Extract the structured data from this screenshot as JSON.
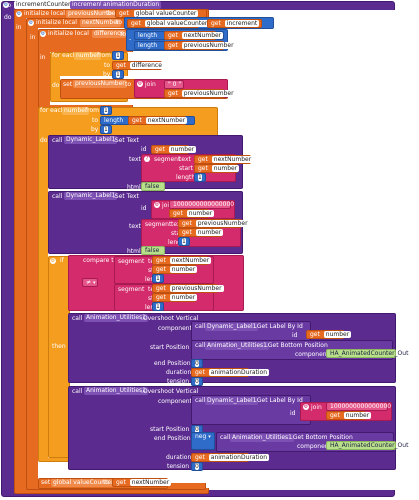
{
  "header": {
    "to_label": "to",
    "procedure_name": "incrementCounter",
    "param1": "increment",
    "param2": "animationDuration",
    "do_label": "do"
  },
  "init1": {
    "label": "initialize local",
    "var": "previousNumber",
    "to_label": "to",
    "get_label": "get",
    "value": "global valueCounter"
  },
  "init2": {
    "label": "initialize local",
    "var": "nextNumber",
    "to_label": "to",
    "plus": "+",
    "get1": "global valueCounter",
    "get2": "increment",
    "get_label": "get"
  },
  "init3": {
    "label": "initialize local",
    "var": "difference",
    "to_label": "to",
    "minus": "-",
    "length1": "length",
    "get1": "nextNumber",
    "length2": "length",
    "get2": "previousNumber",
    "get_label": "get"
  },
  "in_label": "in",
  "foreach1": {
    "label": "for each",
    "var": "number",
    "from": "from",
    "to": "to",
    "by": "by",
    "from_val": "1",
    "by_val": "1",
    "get_label": "get",
    "to_get": "difference",
    "do_label": "do"
  },
  "set1": {
    "set": "set",
    "var": "previousNumber",
    "to": "to",
    "join": "join",
    "empty": "\" 0 \"",
    "get_label": "get",
    "get_var": "previousNumber"
  },
  "foreach2": {
    "label": "for each",
    "var": "number",
    "from": "from",
    "to": "to",
    "by": "by",
    "from_val": "1",
    "by_val": "1",
    "length": "length",
    "get_label": "get",
    "to_get": "nextNumber",
    "do_label": "do"
  },
  "call1": {
    "call": "call",
    "component": "Dynamic_Label1",
    "method": ".Set Text",
    "id": "id",
    "id_get": "number",
    "text": "text",
    "segment": "segment",
    "seg_text": "text",
    "seg_get": "nextNumber",
    "start": "start",
    "start_get": "number",
    "length": "length",
    "length_val": "1",
    "html": "html",
    "html_val": "false",
    "get_label": "get"
  },
  "call2": {
    "call": "call",
    "component": "Dynamic_Label1",
    "method": ".Set Text",
    "id": "id",
    "join": "join",
    "id_val": "1000000000000000",
    "id_get": "number",
    "text": "text",
    "segment": "segment",
    "seg_text": "text",
    "seg_get": "previousNumber",
    "start": "start",
    "start_get": "number",
    "length": "length",
    "length_val": "1",
    "html": "html",
    "html_val": "false",
    "get_label": "get"
  },
  "if_block": {
    "if": "if",
    "compare": "compare texts",
    "op": "≠",
    "seg1": "segment",
    "text1": "text",
    "get1": "nextNumber",
    "start1": "start",
    "start1_get": "number",
    "length1": "length",
    "length1_val": "1",
    "seg2": "segment",
    "text2": "text",
    "get2": "previousNumber",
    "start2": "start",
    "start2_get": "number",
    "length2": "length",
    "length2_val": "1",
    "then": "then",
    "get_label": "get"
  },
  "anim1": {
    "call": "call",
    "component": "Animation_Utilities1",
    "method": ".Overshoot Vertical",
    "component_label": "component",
    "comp_call": "call",
    "comp_target": "Dynamic_Label1",
    "comp_method": ".Get Label By Id",
    "comp_id": "id",
    "comp_id_get": "number",
    "start_label": "start Position",
    "start_call": "call",
    "start_target": "Animation_Utilities1",
    "start_method": ".Get Bottom Position",
    "start_component": "component",
    "start_comp_val": "HA_AnimatedCounter_Out",
    "end_label": "end Position",
    "end_val": "0",
    "duration_label": "duration",
    "duration_get": "animationDuration",
    "tension_label": "tension",
    "tension_val": "0",
    "get_label": "get"
  },
  "anim2": {
    "call": "call",
    "component": "Animation_Utilities1",
    "method": ".Overshoot Vertical",
    "component_label": "component",
    "comp_call": "call",
    "comp_target": "Dynamic_Label1",
    "comp_method": ".Get Label By Id",
    "comp_id": "id",
    "join": "join",
    "comp_id_val": "1000000000000000",
    "comp_id_get": "number",
    "start_label": "start Position",
    "start_val": "0",
    "end_label": "end Position",
    "neg": "neg",
    "end_call": "call",
    "end_target": "Animation_Utilities1",
    "end_method": ".Get Bottom Position",
    "end_component": "component",
    "end_comp_val": "HA_AnimatedCounter_Out",
    "duration_label": "duration",
    "duration_get": "animationDuration",
    "tension_label": "tension",
    "tension_val": "0",
    "get_label": "get"
  },
  "final_set": {
    "set": "set",
    "var": "global valueCounter",
    "to": "to",
    "get_label": "get",
    "get_var": "nextNumber"
  },
  "colors": {
    "procedure": "#5b2b8f",
    "variable": "#e66b21",
    "control": "#f59d1f",
    "text": "#d32b6b",
    "math": "#2f6cc9",
    "logic": "#b8e08b",
    "component": "#5b2b8f"
  }
}
